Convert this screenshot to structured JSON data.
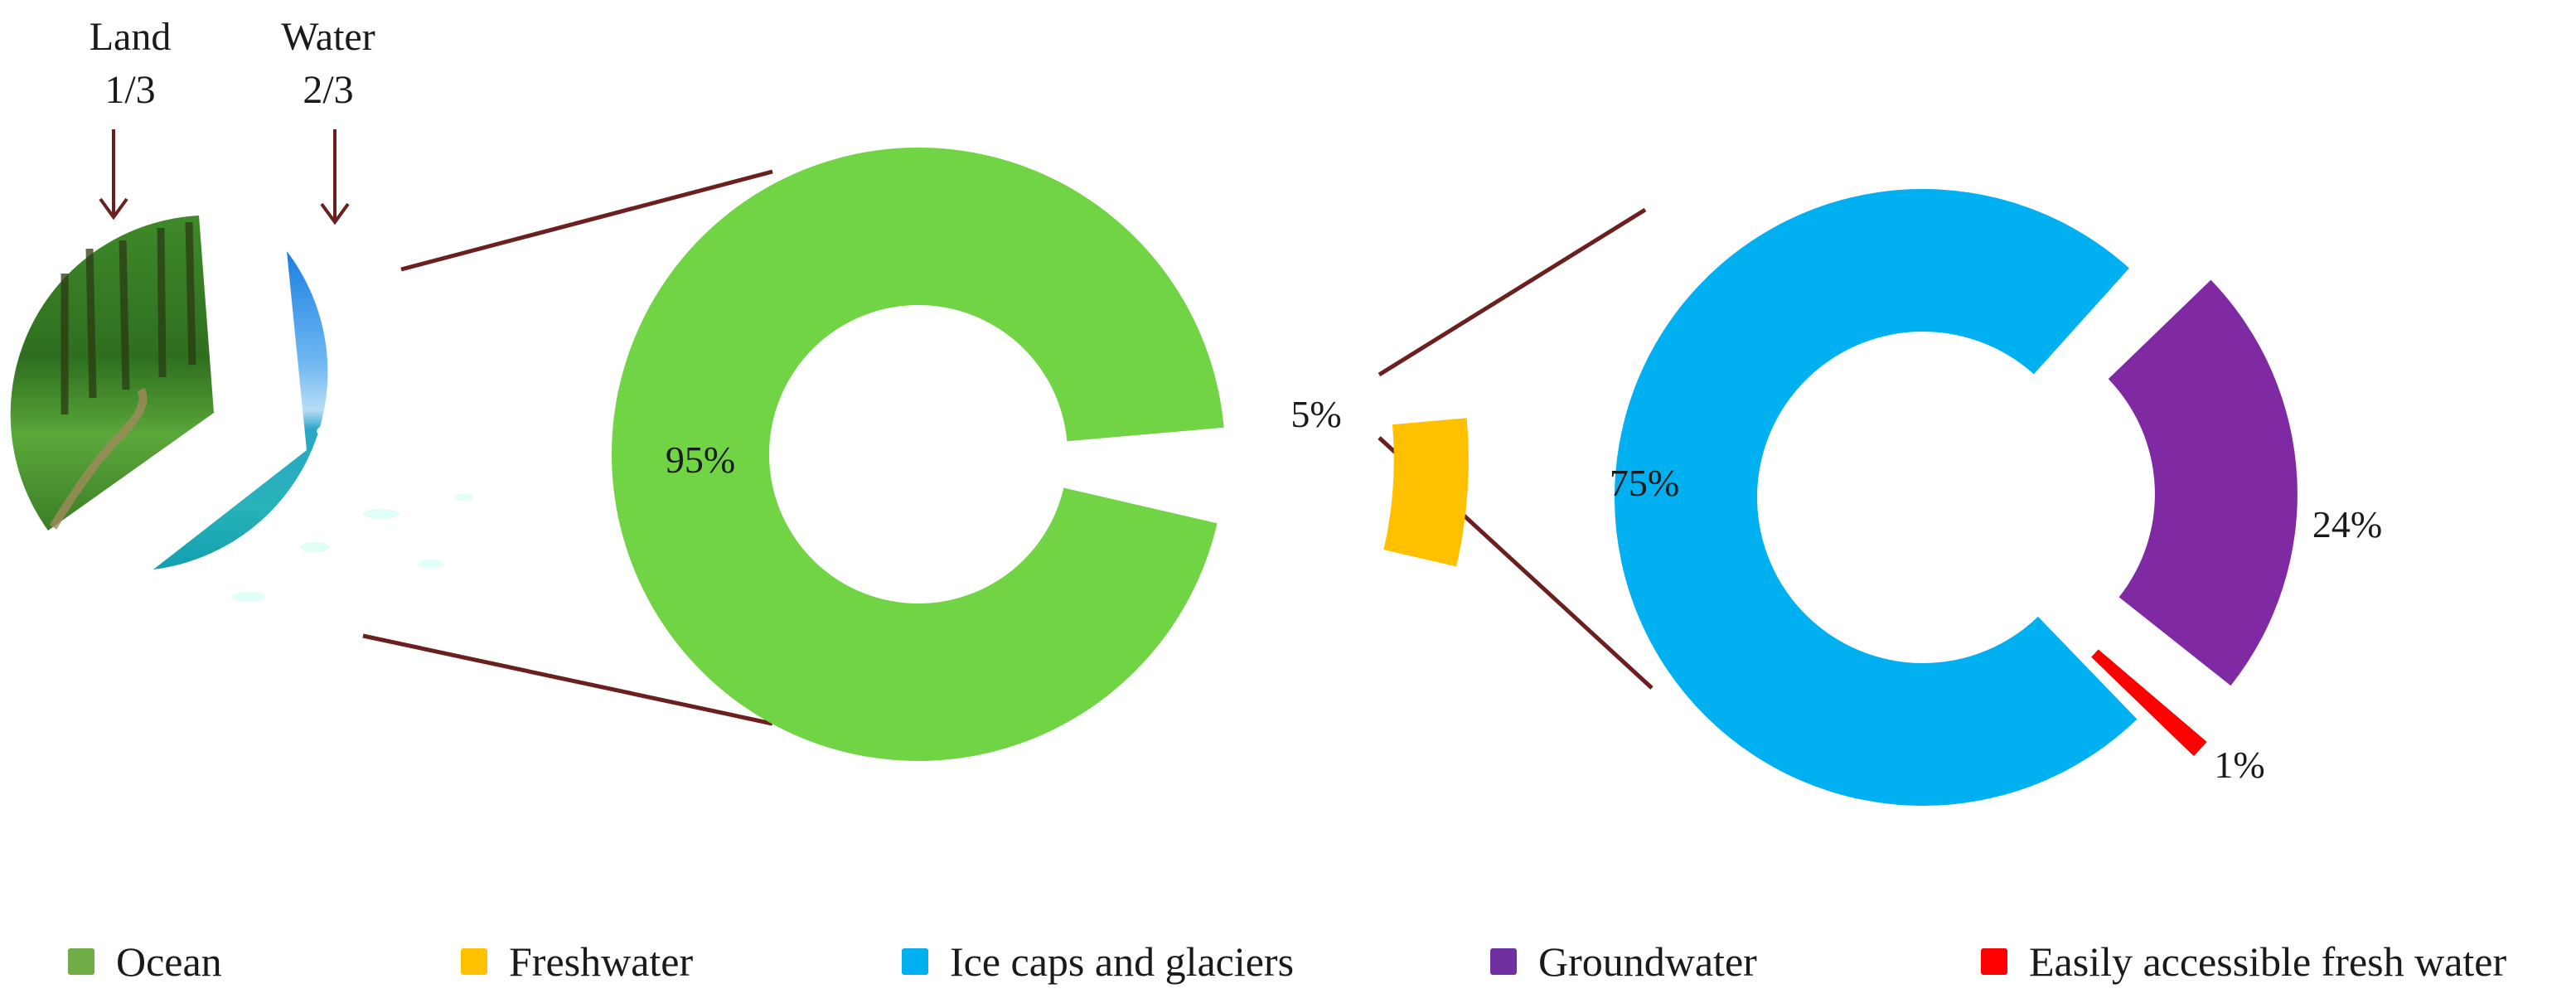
{
  "chart_data": {
    "type": "pie",
    "earth": {
      "slices": [
        {
          "label": "Land",
          "value": "1/3"
        },
        {
          "label": "Water",
          "value": "2/3"
        }
      ]
    },
    "water": {
      "slices": [
        {
          "category": "Ocean",
          "value": 95,
          "label": "95%"
        },
        {
          "category": "Freshwater",
          "value": 5,
          "label": "5%"
        }
      ]
    },
    "freshwater": {
      "slices": [
        {
          "category": "Ice caps and glaciers",
          "value": 75,
          "label": "75%"
        },
        {
          "category": "Groundwater",
          "value": 24,
          "label": "24%"
        },
        {
          "category": "Easily accessible fresh water",
          "value": 1,
          "label": "1%"
        }
      ]
    },
    "legend": {
      "position": "bottom",
      "items": [
        {
          "label": "Ocean",
          "color": "#70ad47"
        },
        {
          "label": "Freshwater",
          "color": "#ffc000"
        },
        {
          "label": "Ice caps and glaciers",
          "color": "#00b0f0"
        },
        {
          "label": "Groundwater",
          "color": "#7030a0"
        },
        {
          "label": "Easily accessible fresh water",
          "color": "#ff0000"
        }
      ]
    }
  },
  "colors": {
    "ocean": "#70d444",
    "freshwater": "#ffc000",
    "ice": "#00b0f0",
    "groundwater": "#7f2aa3",
    "accessible": "#ff0000",
    "connector": "#6b1f1f"
  }
}
